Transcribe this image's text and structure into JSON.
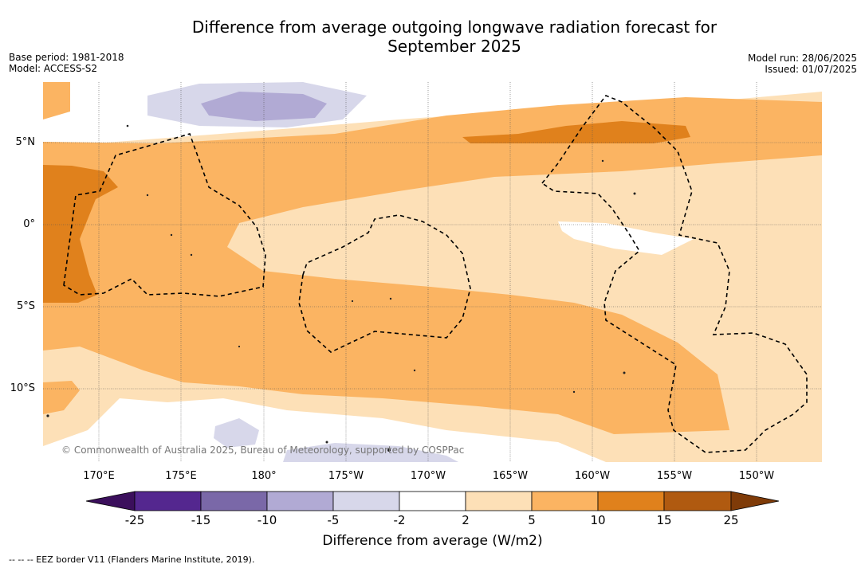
{
  "title_line1": "Difference from average outgoing longwave radiation forecast for",
  "title_line2": "September 2025",
  "base_period": "Base period: 1981-2018",
  "model": "Model: ACCESS-S2",
  "model_run": "Model run: 28/06/2025",
  "issued": "Issued: 01/07/2025",
  "lat_labels": [
    "5°N",
    "0°",
    "5°S",
    "10°S"
  ],
  "lon_labels": [
    "170°E",
    "175°E",
    "180°",
    "175°W",
    "170°W",
    "165°W",
    "160°W",
    "155°W",
    "150°W"
  ],
  "copyright": "© Commonwealth of Australia 2025, Bureau of Meteorology, supported by COSPPac",
  "colorbar": {
    "ticks": [
      "-25",
      "-15",
      "-10",
      "-5",
      "-2",
      "2",
      "5",
      "10",
      "15",
      "25"
    ],
    "colors": [
      "#3b0f5c",
      "#54278f",
      "#7a68a8",
      "#b1aad4",
      "#d7d7ea",
      "#ffffff",
      "#fde0b7",
      "#fbb462",
      "#e0811c",
      "#b05a10",
      "#7f3b08"
    ],
    "label": "Difference from average (W/m2)"
  },
  "legend_note": "--  --  -- EEZ border V11 (Flanders Marine Institute, 2019)."
}
